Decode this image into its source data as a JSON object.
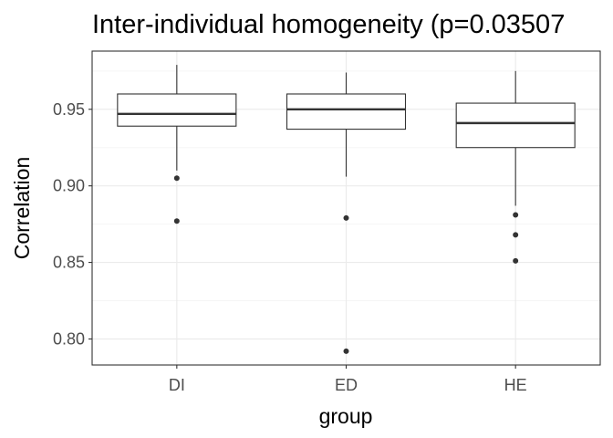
{
  "chart_data": {
    "type": "box",
    "title": "Inter-individual homogeneity (p=0.03507",
    "xlabel": "group",
    "ylabel": "Correlation",
    "categories": [
      "DI",
      "ED",
      "HE"
    ],
    "ylim": [
      0.783,
      0.988
    ],
    "yticks": [
      0.8,
      0.85,
      0.9,
      0.95
    ],
    "ytick_labels": [
      "0.80",
      "0.85",
      "0.90",
      "0.95"
    ],
    "grid": true,
    "boxes": [
      {
        "group": "DI",
        "whisker_low": 0.91,
        "q1": 0.939,
        "median": 0.947,
        "q3": 0.96,
        "whisker_high": 0.979,
        "outliers": [
          0.905,
          0.877
        ]
      },
      {
        "group": "ED",
        "whisker_low": 0.906,
        "q1": 0.937,
        "median": 0.95,
        "q3": 0.96,
        "whisker_high": 0.974,
        "outliers": [
          0.879,
          0.792
        ]
      },
      {
        "group": "HE",
        "whisker_low": 0.887,
        "q1": 0.925,
        "median": 0.941,
        "q3": 0.954,
        "whisker_high": 0.975,
        "outliers": [
          0.881,
          0.868,
          0.851
        ]
      }
    ],
    "colors": {
      "box_stroke": "#333333",
      "box_fill": "#ffffff",
      "grid_major": "#ebebeb",
      "grid_minor": "#f5f5f5",
      "panel_border": "#333333",
      "outlier": "#333333"
    }
  }
}
